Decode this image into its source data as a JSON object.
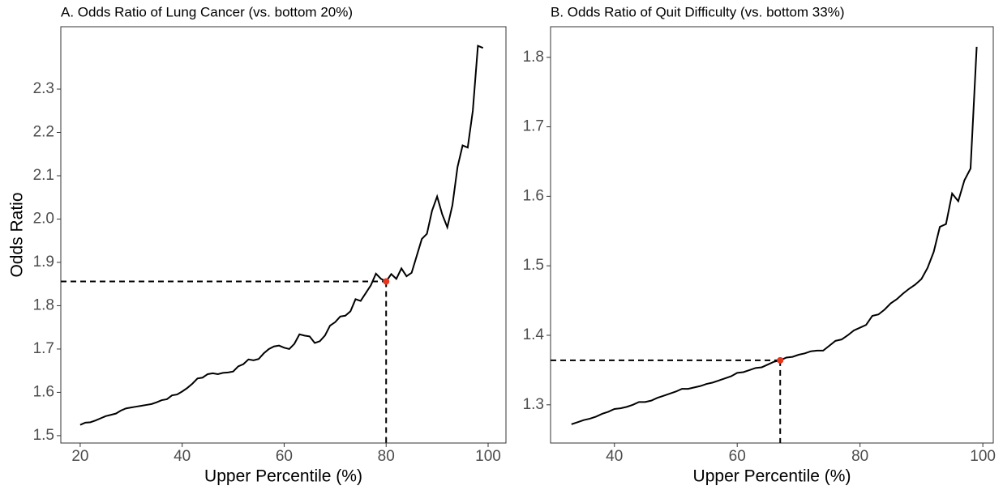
{
  "chart_data": [
    {
      "type": "line",
      "title": "A. Odds Ratio of Lung Cancer (vs. bottom 20%)",
      "x_label": "Upper Percentile (%)",
      "y_label": "Odds Ratio",
      "x": [
        20,
        21,
        22,
        23,
        24,
        25,
        26,
        27,
        28,
        29,
        30,
        31,
        32,
        33,
        34,
        35,
        36,
        37,
        38,
        39,
        40,
        41,
        42,
        43,
        44,
        45,
        46,
        47,
        48,
        49,
        50,
        51,
        52,
        53,
        54,
        55,
        56,
        57,
        58,
        59,
        60,
        61,
        62,
        63,
        64,
        65,
        66,
        67,
        68,
        69,
        70,
        71,
        72,
        73,
        74,
        75,
        76,
        77,
        78,
        79,
        80,
        81,
        82,
        83,
        84,
        85,
        86,
        87,
        88,
        89,
        90,
        91,
        92,
        93,
        94,
        95,
        96,
        97,
        98,
        99
      ],
      "values": [
        1.525,
        1.53,
        1.531,
        1.535,
        1.54,
        1.545,
        1.548,
        1.551,
        1.558,
        1.563,
        1.565,
        1.567,
        1.569,
        1.571,
        1.573,
        1.577,
        1.582,
        1.584,
        1.593,
        1.595,
        1.602,
        1.61,
        1.62,
        1.632,
        1.634,
        1.642,
        1.644,
        1.642,
        1.645,
        1.646,
        1.648,
        1.66,
        1.665,
        1.676,
        1.674,
        1.677,
        1.69,
        1.7,
        1.706,
        1.708,
        1.703,
        1.7,
        1.712,
        1.734,
        1.731,
        1.729,
        1.714,
        1.718,
        1.731,
        1.754,
        1.762,
        1.775,
        1.777,
        1.787,
        1.815,
        1.811,
        1.829,
        1.847,
        1.874,
        1.862,
        1.856,
        1.873,
        1.862,
        1.886,
        1.868,
        1.876,
        1.915,
        1.954,
        1.966,
        2.019,
        2.052,
        2.011,
        1.981,
        2.032,
        2.12,
        2.17,
        2.165,
        2.25,
        2.4,
        2.395
      ],
      "color": "#000000",
      "highlight": {
        "x": 80,
        "y": 1.856,
        "color": "#e8351c"
      },
      "xlim": [
        16.2,
        103.5
      ],
      "ylim": [
        1.483,
        2.444
      ],
      "xticks": [
        20,
        40,
        60,
        80,
        100
      ],
      "yticks": [
        1.5,
        1.6,
        1.7,
        1.8,
        1.9,
        {
          "value": 2,
          "label": "2.0"
        },
        2.1,
        2.2,
        2.3
      ]
    },
    {
      "type": "line",
      "title": "B. Odds Ratio of Quit Difficulty (vs. bottom 33%)",
      "x_label": "Upper Percentile (%)",
      "x": [
        33,
        34,
        35,
        36,
        37,
        38,
        39,
        40,
        41,
        42,
        43,
        44,
        45,
        46,
        47,
        48,
        49,
        50,
        51,
        52,
        53,
        54,
        55,
        56,
        57,
        58,
        59,
        60,
        61,
        62,
        63,
        64,
        65,
        66,
        67,
        68,
        69,
        70,
        71,
        72,
        73,
        74,
        75,
        76,
        77,
        78,
        79,
        80,
        81,
        82,
        83,
        84,
        85,
        86,
        87,
        88,
        89,
        90,
        91,
        92,
        93,
        94,
        95,
        96,
        97,
        98,
        99
      ],
      "values": [
        1.272,
        1.275,
        1.278,
        1.28,
        1.283,
        1.287,
        1.29,
        1.294,
        1.295,
        1.297,
        1.3,
        1.304,
        1.304,
        1.306,
        1.31,
        1.313,
        1.316,
        1.319,
        1.323,
        1.323,
        1.325,
        1.327,
        1.33,
        1.332,
        1.335,
        1.338,
        1.341,
        1.346,
        1.347,
        1.35,
        1.353,
        1.354,
        1.358,
        1.362,
        1.364,
        1.368,
        1.369,
        1.372,
        1.374,
        1.377,
        1.378,
        1.378,
        1.385,
        1.392,
        1.394,
        1.4,
        1.407,
        1.411,
        1.415,
        1.428,
        1.43,
        1.437,
        1.446,
        1.452,
        1.46,
        1.467,
        1.473,
        1.481,
        1.497,
        1.52,
        1.556,
        1.56,
        1.604,
        1.593,
        1.623,
        1.64,
        1.815
      ],
      "color": "#000000",
      "highlight": {
        "x": 67,
        "y": 1.364,
        "color": "#e8351c"
      },
      "xlim": [
        29.6,
        101.7
      ],
      "ylim": [
        1.245,
        1.844
      ],
      "xticks": [
        40,
        60,
        80,
        100
      ],
      "yticks": [
        1.3,
        1.4,
        1.5,
        1.6,
        1.7,
        1.8
      ]
    }
  ]
}
